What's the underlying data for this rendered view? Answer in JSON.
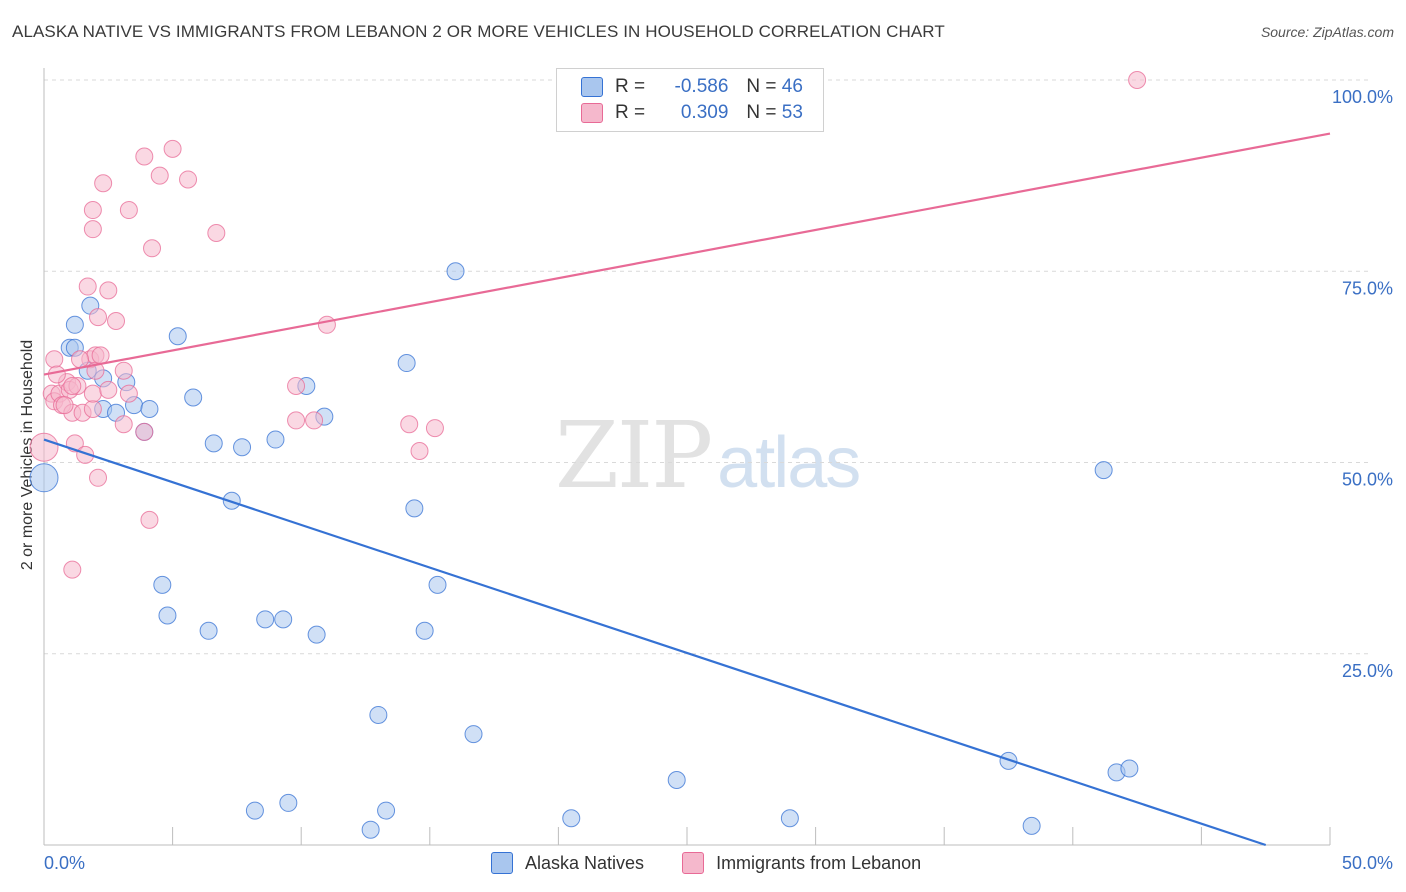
{
  "title": "ALASKA NATIVE VS IMMIGRANTS FROM LEBANON 2 OR MORE VEHICLES IN HOUSEHOLD CORRELATION CHART",
  "source": "Source: ZipAtlas.com",
  "watermark": {
    "main": "ZIP",
    "sub": "atlas"
  },
  "colors": {
    "blue": "#3572d4",
    "blue_fill": "#a9c6ee",
    "pink": "#e86a96",
    "pink_fill": "#f5b8cc"
  },
  "legend": {
    "r_label": "R =",
    "n_label": "N =",
    "rows": [
      {
        "r": "-0.586",
        "n": "46"
      },
      {
        "r": "0.309",
        "n": "53"
      }
    ]
  },
  "chart_data": {
    "type": "scatter",
    "xlabel": "",
    "ylabel": "2 or more Vehicles in Household",
    "xlim": [
      0,
      50
    ],
    "ylim": [
      0,
      100
    ],
    "x_tick_labels": [
      "0.0%",
      "50.0%"
    ],
    "y_tick_labels": [
      "100.0%",
      "75.0%",
      "50.0%",
      "25.0%"
    ],
    "y_ticks": [
      100,
      75,
      50,
      25
    ],
    "grid": true,
    "series": [
      {
        "name": "Alaska Natives",
        "color": "#3572d4",
        "trend": {
          "x": [
            0,
            47.5
          ],
          "y": [
            53,
            0
          ]
        },
        "points": [
          [
            1,
            65
          ],
          [
            1.2,
            65
          ],
          [
            1.2,
            68
          ],
          [
            1.7,
            62
          ],
          [
            1.8,
            70.5
          ],
          [
            2.3,
            57
          ],
          [
            2.3,
            61
          ],
          [
            2.8,
            56.5
          ],
          [
            3.2,
            60.5
          ],
          [
            3.5,
            57.5
          ],
          [
            3.9,
            54
          ],
          [
            4.1,
            57
          ],
          [
            5.2,
            66.5
          ],
          [
            5.8,
            58.5
          ],
          [
            6.6,
            52.5
          ],
          [
            7.3,
            45
          ],
          [
            7.7,
            52
          ],
          [
            9,
            53
          ],
          [
            10.2,
            60
          ],
          [
            10.9,
            56
          ],
          [
            14.1,
            63
          ],
          [
            14.4,
            44
          ],
          [
            16,
            75
          ],
          [
            4.6,
            34
          ],
          [
            4.8,
            30
          ],
          [
            6.4,
            28
          ],
          [
            8.6,
            29.5
          ],
          [
            9.3,
            29.5
          ],
          [
            10.6,
            27.5
          ],
          [
            15.3,
            34
          ],
          [
            14.8,
            28
          ],
          [
            13,
            17
          ],
          [
            16.7,
            14.5
          ],
          [
            8.2,
            4.5
          ],
          [
            9.5,
            5.5
          ],
          [
            12.7,
            2
          ],
          [
            13.3,
            4.5
          ],
          [
            20.5,
            3.5
          ],
          [
            24.6,
            8.5
          ],
          [
            29,
            3.5
          ],
          [
            37.5,
            11
          ],
          [
            38.4,
            2.5
          ],
          [
            41.7,
            9.5
          ],
          [
            42.2,
            10
          ],
          [
            41.2,
            49
          ],
          [
            0,
            48
          ]
        ]
      },
      {
        "name": "Immigrants from Lebanon",
        "color": "#e86a96",
        "trend": {
          "x": [
            0,
            50
          ],
          "y": [
            61.5,
            93
          ]
        },
        "points": [
          [
            0.3,
            59
          ],
          [
            0.4,
            58
          ],
          [
            0.4,
            63.5
          ],
          [
            0.6,
            59
          ],
          [
            0.7,
            57.5
          ],
          [
            0.9,
            60.5
          ],
          [
            1,
            59.5
          ],
          [
            1.1,
            56.5
          ],
          [
            1.2,
            52.5
          ],
          [
            1.3,
            60
          ],
          [
            1.5,
            56.5
          ],
          [
            1.6,
            51
          ],
          [
            1.8,
            63.5
          ],
          [
            1.9,
            57
          ],
          [
            1.9,
            59
          ],
          [
            2,
            64
          ],
          [
            2,
            62
          ],
          [
            2.1,
            69
          ],
          [
            2.2,
            64
          ],
          [
            2.1,
            48
          ],
          [
            2.5,
            72.5
          ],
          [
            2.8,
            68.5
          ],
          [
            3.3,
            59
          ],
          [
            3.1,
            55
          ],
          [
            3.9,
            54
          ],
          [
            1.7,
            73
          ],
          [
            1.9,
            80.5
          ],
          [
            1.9,
            83
          ],
          [
            2.3,
            86.5
          ],
          [
            3.3,
            83
          ],
          [
            3.9,
            90
          ],
          [
            4.2,
            78
          ],
          [
            4.5,
            87.5
          ],
          [
            5,
            91
          ],
          [
            5.6,
            87
          ],
          [
            6.7,
            80
          ],
          [
            4.1,
            42.5
          ],
          [
            1.1,
            36
          ],
          [
            9.8,
            60
          ],
          [
            9.8,
            55.5
          ],
          [
            10.5,
            55.5
          ],
          [
            11,
            68
          ],
          [
            14.2,
            55
          ],
          [
            14.6,
            51.5
          ],
          [
            15.2,
            54.5
          ],
          [
            42.5,
            100
          ],
          [
            0,
            52
          ],
          [
            1.4,
            63.5
          ],
          [
            0.5,
            61.5
          ],
          [
            1.1,
            60
          ],
          [
            2.5,
            59.5
          ],
          [
            0.8,
            57.5
          ],
          [
            3.1,
            62
          ]
        ]
      }
    ]
  }
}
